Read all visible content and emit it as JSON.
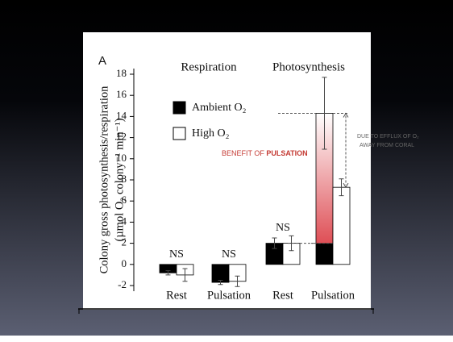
{
  "chart_data": {
    "type": "bar",
    "panel_label": "A",
    "group_titles": [
      "Respiration",
      "Photosynthesis"
    ],
    "y_label": [
      "Colony gross photosynthesis/respiration",
      "(µmol O₂ colony⁻¹ min⁻¹)"
    ],
    "categories": [
      "Rest",
      "Pulsation",
      "Rest",
      "Pulsation"
    ],
    "series": [
      {
        "name": "Ambient O₂",
        "color": "#000000",
        "values": [
          -0.8,
          -1.7,
          2.0,
          14.3
        ],
        "errors": [
          0.2,
          0.2,
          0.5,
          3.4
        ]
      },
      {
        "name": "High O₂",
        "color": "#ffffff",
        "values": [
          -1.0,
          -1.6,
          2.0,
          7.3
        ],
        "errors": [
          0.6,
          0.5,
          0.7,
          0.8
        ]
      }
    ],
    "significance": [
      "NS",
      "NS",
      "NS"
    ],
    "ylim": [
      -2.5,
      18.5
    ],
    "yticks": [
      -2,
      0,
      2,
      4,
      6,
      8,
      10,
      12,
      14,
      16,
      18
    ],
    "annotations": {
      "benefit": [
        "BENEFIT OF ",
        "PULSATION"
      ],
      "efflux": [
        "DUE TO EFFLUX OF O₂",
        "AWAY FROM CORAL"
      ]
    }
  }
}
